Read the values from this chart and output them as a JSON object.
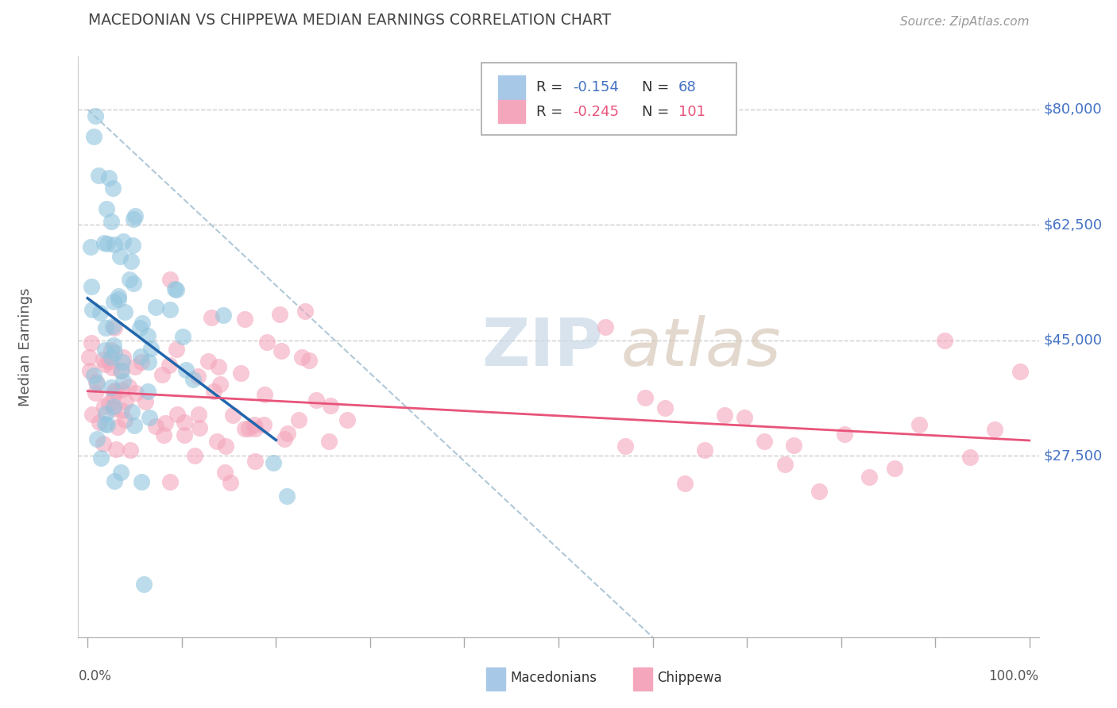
{
  "title": "MACEDONIAN VS CHIPPEWA MEDIAN EARNINGS CORRELATION CHART",
  "source": "Source: ZipAtlas.com",
  "ylabel": "Median Earnings",
  "ytick_labels": [
    "$27,500",
    "$45,000",
    "$62,500",
    "$80,000"
  ],
  "ytick_values": [
    27500,
    45000,
    62500,
    80000
  ],
  "blue_color": "#92c5de",
  "pink_color": "#f4a6bc",
  "blue_line_color": "#2166ac",
  "pink_line_color": "#e8537a",
  "title_color": "#444444",
  "source_color": "#999999",
  "ylabel_color": "#555555",
  "ytick_color": "#4472c4",
  "xtick_color": "#555555",
  "grid_color": "#cccccc",
  "diag_color": "#b0c8d8",
  "watermark_zip_color": "#c8d8e8",
  "watermark_atlas_color": "#d8c8b8",
  "legend_box_color": "#a8c8e8",
  "legend_pink_box_color": "#f4a6bc",
  "xlim": [
    0,
    100
  ],
  "ylim": [
    0,
    88000
  ],
  "blue_scatter_seed": 123,
  "pink_scatter_seed": 456,
  "blue_n": 68,
  "pink_n": 101,
  "blue_r": -0.154,
  "pink_r": -0.245,
  "blue_y_mean": 46000,
  "blue_y_std": 10000,
  "pink_y_mean": 34000,
  "pink_y_std": 6000
}
